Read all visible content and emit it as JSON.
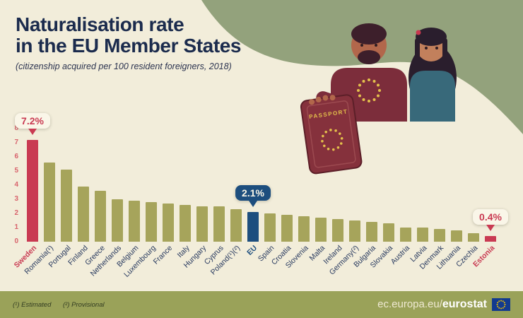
{
  "header": {
    "title_line1": "Naturalisation rate",
    "title_line2": "in the EU Member States",
    "subtitle": "(citizenship acquired per 100 resident foreigners, 2018)"
  },
  "chart_data": {
    "type": "bar",
    "title": "Naturalisation rate in the EU Member States",
    "subtitle": "(citizenship acquired per 100 resident foreigners, 2018)",
    "unit": "per 100 resident foreigners",
    "ylim": [
      0,
      8
    ],
    "yticks": [
      0,
      1,
      2,
      3,
      4,
      5,
      6,
      7,
      8
    ],
    "grid": false,
    "bar_color_default": "#a6a45b",
    "categories": [
      "Sweden",
      "Romania(¹)",
      "Portugal",
      "Finland",
      "Greece",
      "Netherlands",
      "Belgium",
      "Luxembourg",
      "France",
      "Italy",
      "Hungary",
      "Cyprus",
      "Poland(¹)(²)",
      "EU",
      "Spain",
      "Croatia",
      "Slovenia",
      "Malta",
      "Ireland",
      "Germany(²)",
      "Bulgaria",
      "Slovakia",
      "Austria",
      "Latvia",
      "Denmark",
      "Lithuania",
      "Czechia",
      "Estonia"
    ],
    "values": [
      7.2,
      5.6,
      5.1,
      3.9,
      3.6,
      3.0,
      2.9,
      2.8,
      2.7,
      2.6,
      2.5,
      2.5,
      2.3,
      2.1,
      2.0,
      1.9,
      1.8,
      1.7,
      1.6,
      1.5,
      1.4,
      1.3,
      1.0,
      1.0,
      0.9,
      0.8,
      0.6,
      0.4
    ],
    "highlighted_bars": [
      {
        "index": 0,
        "category": "Sweden",
        "bar_color": "#c93a52",
        "label_color": "#c93a52",
        "callout": {
          "text": "7.2%",
          "bg": "#faf6e8",
          "fg": "#c93a52",
          "pointer": "#c93a52"
        }
      },
      {
        "index": 13,
        "category": "EU",
        "bar_color": "#1d4e7e",
        "label_color": "#1d4e7e",
        "callout": {
          "text": "2.1%",
          "bg": "#1d4e7e",
          "fg": "#faf6e8",
          "pointer": "#1d4e7e"
        }
      },
      {
        "index": 27,
        "category": "Estonia",
        "bar_color": "#c93a52",
        "label_color": "#c93a52",
        "callout": {
          "text": "0.4%",
          "bg": "#faf6e8",
          "fg": "#c93a52",
          "pointer": "#c93a52"
        }
      }
    ]
  },
  "illustration": {
    "passport_label": "PASSPORT"
  },
  "footer": {
    "footnote1": "(¹) Estimated",
    "footnote2": "(²) Provisional",
    "url_prefix": "ec.europa.eu/",
    "url_bold": "eurostat"
  },
  "colors": {
    "background": "#f2edda",
    "wave_green": "#93a27c",
    "title_navy": "#1b2b4d",
    "bar_olive": "#a6a45b",
    "accent_red": "#c93a52",
    "accent_blue": "#1d4e7e",
    "footer_olive": "#9aa259",
    "ytick_red": "#d8636c"
  }
}
